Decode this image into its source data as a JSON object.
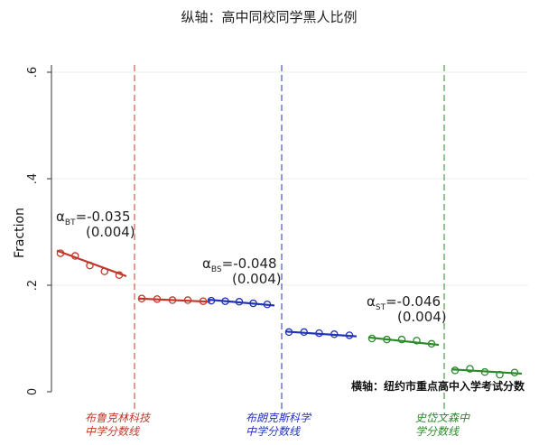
{
  "chart_data": {
    "type": "scatter",
    "title": "纵轴：高中同校同学黑人比例",
    "ylabel": "Fraction",
    "xlabel_note": "横轴：纽约市重点高中入学考试分数",
    "ylim": [
      0,
      0.6
    ],
    "yticks": [
      0,
      0.2,
      0.4,
      0.6
    ],
    "ytick_labels": [
      "0",
      ".2",
      ".4",
      ".6"
    ],
    "grid": true,
    "cutoffs": [
      {
        "name": "cutoff-brooklyn-tech",
        "label": [
          "布鲁克林科技",
          "中学分数线"
        ],
        "color": "#c0392b"
      },
      {
        "name": "cutoff-bronx-science",
        "label": [
          "布朗克斯科学",
          "中学分数线"
        ],
        "color": "#2233bb"
      },
      {
        "name": "cutoff-stuyvesant",
        "label": [
          "史岱文森中",
          "学分数线"
        ],
        "color": "#2a8a2a"
      }
    ],
    "series": [
      {
        "color": "#c0392b",
        "points": [
          0.26,
          0.255,
          0.237,
          0.226,
          0.219
        ],
        "fit": [
          0.265,
          0.217
        ]
      },
      {
        "color": "#c0392b",
        "points": [
          0.175,
          0.174,
          0.172,
          0.172,
          0.17
        ],
        "fit": [
          0.175,
          0.169
        ]
      },
      {
        "color": "#2233bb",
        "points": [
          0.171,
          0.17,
          0.169,
          0.166,
          0.164
        ],
        "fit": [
          0.173,
          0.162
        ]
      },
      {
        "color": "#2233bb",
        "points": [
          0.112,
          0.112,
          0.11,
          0.108,
          0.106
        ],
        "fit": [
          0.113,
          0.104
        ]
      },
      {
        "color": "#2a8a2a",
        "points": [
          0.1,
          0.098,
          0.098,
          0.096,
          0.09
        ],
        "fit": [
          0.102,
          0.088
        ]
      },
      {
        "color": "#2a8a2a",
        "points": [
          0.04,
          0.043,
          0.037,
          0.032,
          0.036
        ],
        "fit": [
          0.042,
          0.034
        ]
      }
    ],
    "annotations": [
      {
        "name": "annotation-bt",
        "sym": "α",
        "sub": "BT",
        "coef": "=-0.035",
        "se": "(0.004)"
      },
      {
        "name": "annotation-bs",
        "sym": "α",
        "sub": "BS",
        "coef": "=-0.048",
        "se": "(0.004)"
      },
      {
        "name": "annotation-st",
        "sym": "α",
        "sub": "ST",
        "coef": "=-0.046",
        "se": "(0.004)"
      }
    ]
  }
}
